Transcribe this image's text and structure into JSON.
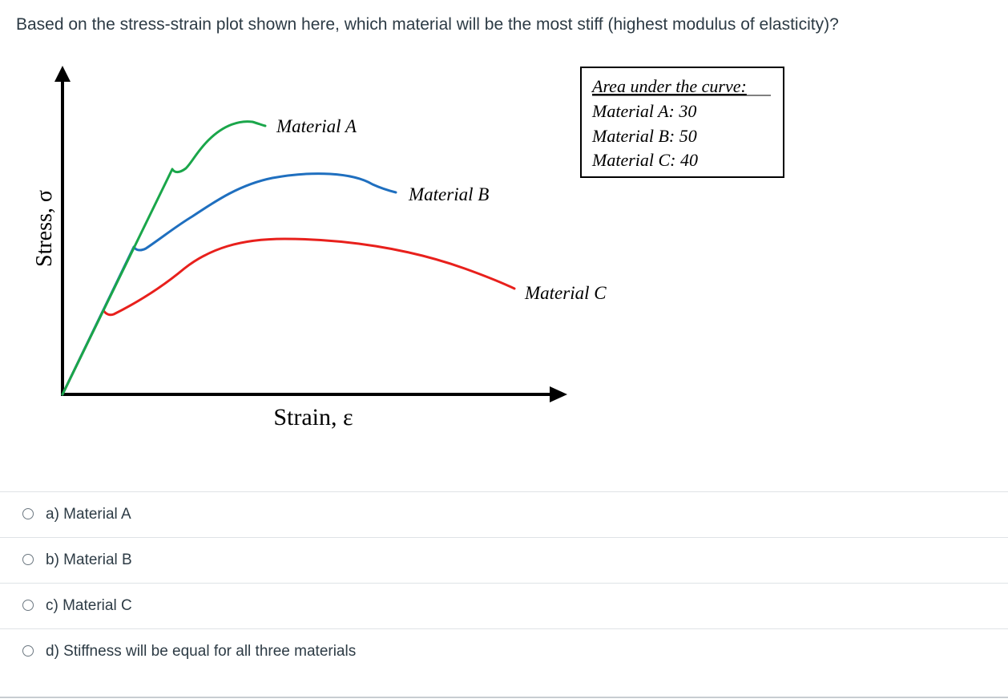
{
  "question": {
    "text": "Based on the stress-strain plot shown here, which material will be the most stiff (highest modulus of elasticity)?"
  },
  "chart_data": {
    "type": "line",
    "xlabel": "Strain, ε",
    "ylabel": "Stress, σ",
    "series": [
      {
        "name": "Material A",
        "color": "#1aa64a"
      },
      {
        "name": "Material B",
        "color": "#1f6fbf"
      },
      {
        "name": "Material C",
        "color": "#e8201c"
      }
    ],
    "grid": false,
    "legend": "top-right",
    "annotation": {
      "title": "Area under the curve:",
      "lines": [
        "Material A: 30",
        "Material B: 50",
        "Material C: 40"
      ]
    }
  },
  "answers": [
    {
      "label": "a) Material A",
      "selected": false
    },
    {
      "label": "b) Material B",
      "selected": false
    },
    {
      "label": "c) Material C",
      "selected": false
    },
    {
      "label": "d) Stiffness will be equal for all three materials",
      "selected": false
    }
  ]
}
